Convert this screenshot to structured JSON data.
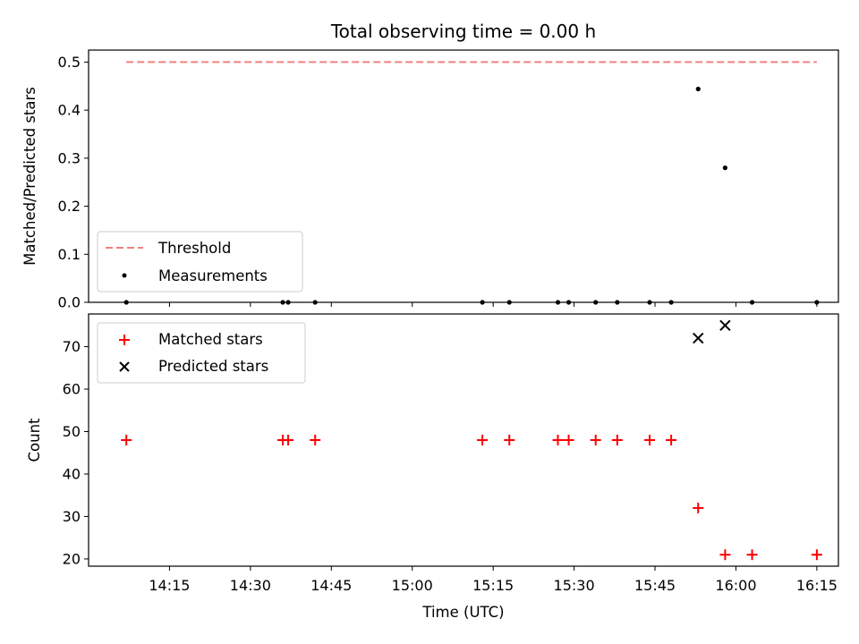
{
  "chart_data": [
    {
      "type": "scatter",
      "title": "Total observing time = 0.00 h",
      "xlabel": "",
      "ylabel": "Matched/Predicted stars",
      "x_unit": "minutes",
      "ylim": [
        0,
        0.525
      ],
      "yticks": [
        0.0,
        0.1,
        0.2,
        0.3,
        0.4,
        0.5
      ],
      "ytick_labels": [
        "0.0",
        "0.1",
        "0.2",
        "0.3",
        "0.4",
        "0.5"
      ],
      "legend_position": "lower-left",
      "threshold": {
        "name": "Threshold",
        "value": 0.5,
        "x_range": [
          "14:07",
          "16:15"
        ],
        "color": "#f08080"
      },
      "series": [
        {
          "name": "Measurements",
          "color": "#000000",
          "x": [
            "14:07",
            "14:36",
            "14:37",
            "14:42",
            "15:13",
            "15:18",
            "15:27",
            "15:29",
            "15:34",
            "15:38",
            "15:44",
            "15:48",
            "15:53",
            "15:58",
            "16:03",
            "16:15"
          ],
          "y": [
            0.0,
            0.0,
            0.0,
            0.0,
            0.0,
            0.0,
            0.0,
            0.0,
            0.0,
            0.0,
            0.0,
            0.0,
            0.444,
            0.28,
            0.0,
            0.0
          ]
        }
      ]
    },
    {
      "type": "scatter",
      "title": "",
      "xlabel": "Time (UTC)",
      "ylabel": "Count",
      "ylim": [
        18.3,
        77.7
      ],
      "yticks": [
        20,
        30,
        40,
        50,
        60,
        70
      ],
      "ytick_labels": [
        "20",
        "30",
        "40",
        "50",
        "60",
        "70"
      ],
      "xticks": [
        "14:15",
        "14:30",
        "14:45",
        "15:00",
        "15:15",
        "15:30",
        "15:45",
        "16:00",
        "16:15"
      ],
      "xlim": [
        "14:00",
        "16:19"
      ],
      "legend_position": "top-left",
      "series": [
        {
          "name": "Matched stars",
          "marker": "+",
          "color": "#ff0000",
          "x": [
            "14:07",
            "14:36",
            "14:37",
            "14:42",
            "15:13",
            "15:18",
            "15:27",
            "15:29",
            "15:34",
            "15:38",
            "15:44",
            "15:48",
            "15:53",
            "15:58",
            "16:03",
            "16:15"
          ],
          "y": [
            48,
            48,
            48,
            48,
            48,
            48,
            48,
            48,
            48,
            48,
            48,
            48,
            32,
            21,
            21,
            21
          ]
        },
        {
          "name": "Predicted stars",
          "marker": "x",
          "color": "#000000",
          "x": [
            "15:53",
            "15:58"
          ],
          "y": [
            72,
            75
          ]
        }
      ]
    }
  ]
}
